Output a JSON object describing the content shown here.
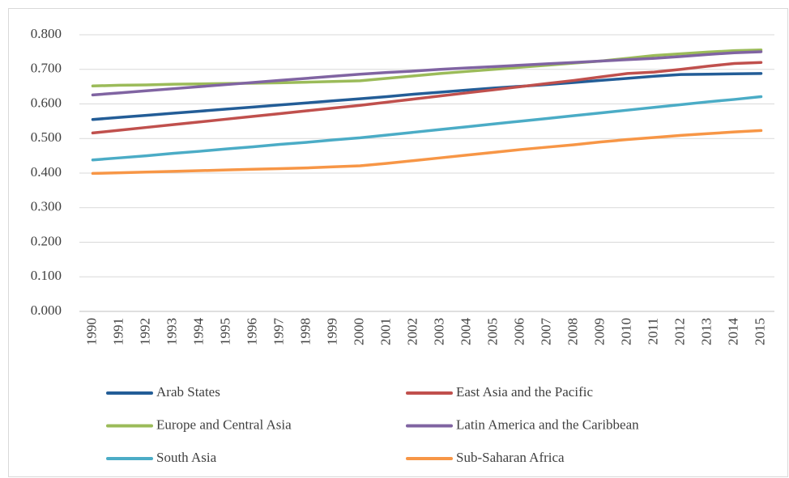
{
  "chart_data": {
    "type": "line",
    "categories": [
      "1990",
      "1991",
      "1992",
      "1993",
      "1994",
      "1995",
      "1996",
      "1997",
      "1998",
      "1999",
      "2000",
      "2001",
      "2002",
      "2003",
      "2004",
      "2005",
      "2006",
      "2007",
      "2008",
      "2009",
      "2010",
      "2011",
      "2012",
      "2013",
      "2014",
      "2015"
    ],
    "series": [
      {
        "name": "Arab States",
        "color": "#235d97",
        "values": [
          0.555,
          0.561,
          0.567,
          0.573,
          0.579,
          0.585,
          0.591,
          0.597,
          0.603,
          0.609,
          0.615,
          0.621,
          0.628,
          0.634,
          0.64,
          0.646,
          0.651,
          0.656,
          0.662,
          0.668,
          0.674,
          0.68,
          0.685,
          0.686,
          0.687,
          0.688
        ]
      },
      {
        "name": "East Asia and the Pacific",
        "color": "#c0504d",
        "values": [
          0.516,
          0.524,
          0.532,
          0.54,
          0.548,
          0.556,
          0.564,
          0.572,
          0.58,
          0.588,
          0.596,
          0.605,
          0.614,
          0.623,
          0.632,
          0.641,
          0.65,
          0.659,
          0.668,
          0.678,
          0.688,
          0.692,
          0.7,
          0.709,
          0.717,
          0.72
        ]
      },
      {
        "name": "Europe and Central Asia",
        "color": "#9bbb59",
        "values": [
          0.652,
          0.654,
          0.655,
          0.657,
          0.658,
          0.659,
          0.66,
          0.661,
          0.663,
          0.665,
          0.667,
          0.674,
          0.681,
          0.688,
          0.694,
          0.7,
          0.706,
          0.712,
          0.718,
          0.724,
          0.732,
          0.74,
          0.745,
          0.75,
          0.754,
          0.756
        ]
      },
      {
        "name": "Latin America and the Caribbean",
        "color": "#8064a2",
        "values": [
          0.626,
          0.632,
          0.638,
          0.644,
          0.65,
          0.656,
          0.662,
          0.668,
          0.674,
          0.68,
          0.686,
          0.691,
          0.695,
          0.7,
          0.704,
          0.708,
          0.712,
          0.716,
          0.72,
          0.724,
          0.728,
          0.732,
          0.737,
          0.743,
          0.748,
          0.751
        ]
      },
      {
        "name": "South Asia",
        "color": "#4bacc6",
        "values": [
          0.438,
          0.444,
          0.45,
          0.457,
          0.463,
          0.47,
          0.476,
          0.483,
          0.489,
          0.496,
          0.502,
          0.51,
          0.518,
          0.526,
          0.534,
          0.542,
          0.55,
          0.558,
          0.566,
          0.574,
          0.582,
          0.59,
          0.598,
          0.606,
          0.613,
          0.621
        ]
      },
      {
        "name": "Sub-Saharan Africa",
        "color": "#f79646",
        "values": [
          0.399,
          0.401,
          0.403,
          0.405,
          0.407,
          0.409,
          0.411,
          0.413,
          0.415,
          0.418,
          0.421,
          0.428,
          0.436,
          0.444,
          0.452,
          0.46,
          0.468,
          0.475,
          0.482,
          0.49,
          0.497,
          0.503,
          0.509,
          0.514,
          0.519,
          0.523
        ]
      }
    ],
    "ylim": [
      0,
      0.8
    ],
    "yticks": [
      {
        "value": 0,
        "label": "0.000"
      },
      {
        "value": 0.1,
        "label": "0.100"
      },
      {
        "value": 0.2,
        "label": "0.200"
      },
      {
        "value": 0.3,
        "label": "0.300"
      },
      {
        "value": 0.4,
        "label": "0.400"
      },
      {
        "value": 0.5,
        "label": "0.500"
      },
      {
        "value": 0.6,
        "label": "0.600"
      },
      {
        "value": 0.7,
        "label": "0.700"
      },
      {
        "value": 0.8,
        "label": "0.800"
      }
    ],
    "grid": true,
    "legend": "bottom"
  }
}
